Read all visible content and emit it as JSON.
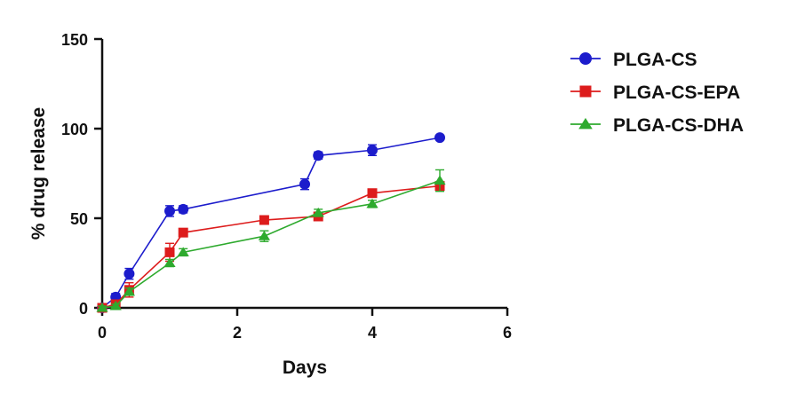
{
  "chart_data": {
    "type": "line",
    "xlabel": "Days",
    "ylabel": "% drug release",
    "xlim": [
      0,
      6
    ],
    "ylim": [
      0,
      150
    ],
    "xticks": [
      0,
      2,
      4,
      6
    ],
    "yticks": [
      0,
      50,
      100,
      150
    ],
    "grid": false,
    "legend_position": "right",
    "error_bars": true,
    "series": [
      {
        "name": "PLGA-CS",
        "color": "#1c1ccc",
        "marker": "circle",
        "x": [
          0,
          0.2,
          0.4,
          1.0,
          1.2,
          3.0,
          3.2,
          4.0,
          5.0
        ],
        "y": [
          0,
          6,
          19,
          54,
          55,
          69,
          85,
          88,
          95
        ],
        "err": [
          1,
          2,
          3,
          3,
          2,
          3,
          2,
          3,
          1
        ]
      },
      {
        "name": "PLGA-CS-EPA",
        "color": "#dd1c1c",
        "marker": "square",
        "x": [
          0,
          0.2,
          0.4,
          1.0,
          1.2,
          2.4,
          3.2,
          4.0,
          5.0
        ],
        "y": [
          0,
          2,
          10,
          31,
          42,
          49,
          51,
          64,
          68
        ],
        "err": [
          1,
          1,
          4,
          5,
          2,
          2,
          2,
          2,
          2
        ]
      },
      {
        "name": "PLGA-CS-DHA",
        "color": "#2eaa2e",
        "marker": "triangle",
        "x": [
          0,
          0.2,
          0.4,
          1.0,
          1.2,
          2.4,
          3.2,
          4.0,
          5.0
        ],
        "y": [
          0,
          1,
          9,
          25,
          31,
          40,
          53,
          58,
          71
        ],
        "err": [
          1,
          1,
          2,
          2,
          2,
          3,
          2,
          2,
          6
        ]
      }
    ]
  }
}
